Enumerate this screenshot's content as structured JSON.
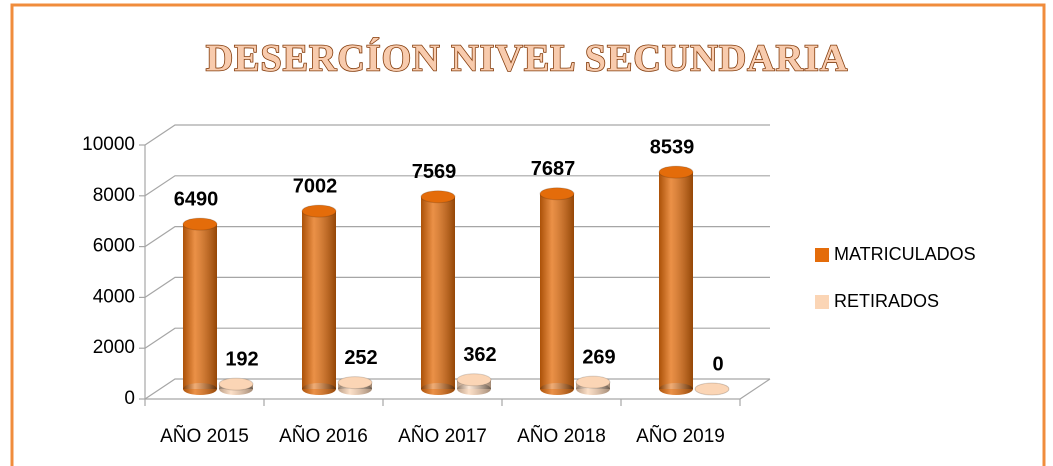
{
  "chart_data": {
    "type": "bar3d",
    "title": "DESERCÍON NIVEL SECUNDARIA",
    "categories": [
      "AÑO 2015",
      "AÑO 2016",
      "AÑO 2017",
      "AÑO 2018",
      "AÑO 2019"
    ],
    "series": [
      {
        "name": "MATRICULADOS",
        "color": "#e46c0a",
        "values": [
          6490,
          7002,
          7569,
          7687,
          8539
        ]
      },
      {
        "name": "RETIRADOS",
        "color": "#fbd5b5",
        "values": [
          192,
          252,
          362,
          269,
          0
        ]
      }
    ],
    "ylim": [
      0,
      10000
    ],
    "yticks": [
      0,
      2000,
      4000,
      6000,
      8000,
      10000
    ],
    "grid": true,
    "legend": "right"
  }
}
